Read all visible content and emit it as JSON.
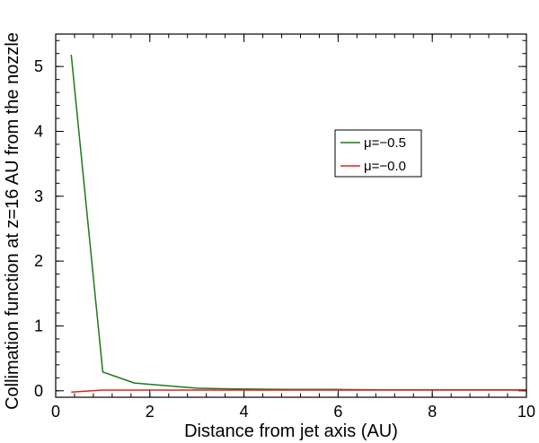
{
  "chart_data": {
    "type": "line",
    "title": "",
    "xlabel": "Distance from jet axis (AU)",
    "ylabel": "Collimation function at z=16 AU from the nozzle",
    "xlim": [
      0,
      10
    ],
    "ylim": [
      -0.1,
      5.5
    ],
    "xticks": [
      0,
      2,
      4,
      6,
      8,
      10
    ],
    "xtick_labels": [
      "0",
      "2",
      "4",
      "6",
      "8",
      "10"
    ],
    "yticks": [
      0,
      1,
      2,
      3,
      4,
      5
    ],
    "ytick_labels": [
      "0",
      "1",
      "2",
      "3",
      "4",
      "5"
    ],
    "grid": false,
    "legend_position": "right-middle",
    "series": [
      {
        "name": "μ=−0.5",
        "color": "#1a7a1a",
        "x": [
          0.33,
          1.0,
          1.67,
          2.33,
          3.0,
          3.67,
          4.33,
          5.0,
          6.0,
          7.0,
          8.0,
          9.0,
          10.0
        ],
        "y": [
          5.18,
          0.29,
          0.12,
          0.08,
          0.04,
          0.03,
          0.025,
          0.02,
          0.02,
          0.015,
          0.015,
          0.015,
          0.015
        ]
      },
      {
        "name": "μ=−0.0",
        "color": "#dd2222",
        "x": [
          0.33,
          1.0,
          2.0,
          3.0,
          4.0,
          5.0,
          6.0,
          7.0,
          8.0,
          9.0,
          10.0
        ],
        "y": [
          -0.02,
          0.01,
          0.01,
          0.01,
          0.01,
          0.01,
          0.01,
          0.01,
          0.01,
          0.01,
          0.01
        ]
      }
    ]
  }
}
